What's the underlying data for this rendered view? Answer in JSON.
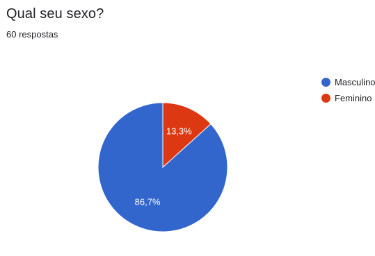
{
  "header": {
    "title": "Qual seu sexo?",
    "subtitle": "60 respostas"
  },
  "chart_data": {
    "type": "pie",
    "title": "Qual seu sexo?",
    "subtitle": "60 respostas",
    "slices": [
      {
        "name": "Masculino",
        "value": 86.7,
        "label": "86,7%",
        "color": "#3366cc"
      },
      {
        "name": "Feminino",
        "value": 13.3,
        "label": "13,3%",
        "color": "#dc3912"
      }
    ],
    "legend_position": "right",
    "start_angle_deg": 90,
    "direction": "counterclockwise"
  }
}
